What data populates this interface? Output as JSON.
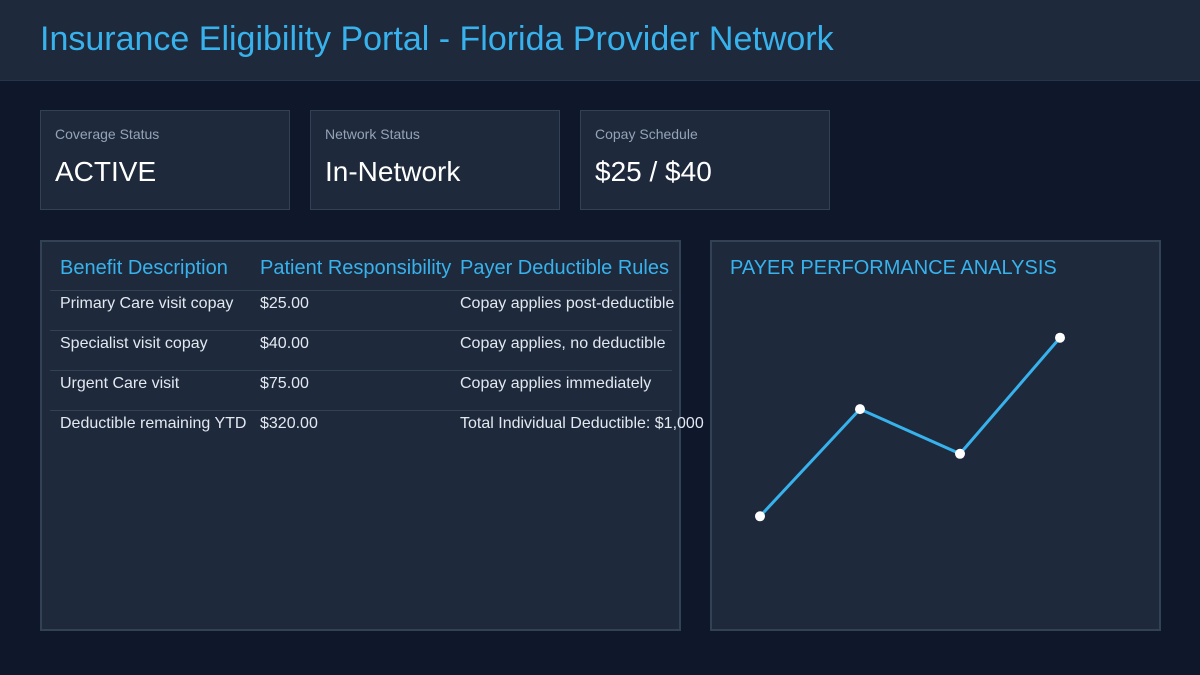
{
  "header": {
    "title": "Insurance Eligibility Portal - Florida Provider Network"
  },
  "cards": [
    {
      "label": "Coverage Status",
      "value": "ACTIVE"
    },
    {
      "label": "Network Status",
      "value": "In-Network"
    },
    {
      "label": "Copay Schedule",
      "value": "$25 / $40"
    }
  ],
  "table": {
    "headers": [
      "Benefit Description",
      "Patient Responsibility",
      "Payer Deductible Rules"
    ],
    "rows": [
      [
        "Primary Care visit copay",
        "$25.00",
        "Copay applies post-deductible"
      ],
      [
        "Specialist visit copay",
        "$40.00",
        "Copay applies, no deductible"
      ],
      [
        "Urgent Care visit",
        "$75.00",
        "Copay applies immediately"
      ],
      [
        "Deductible remaining YTD",
        "$320.00",
        "Total Individual Deductible: $1,000"
      ]
    ]
  },
  "chart": {
    "title": "PAYER PERFORMANCE ANALYSIS"
  },
  "chart_data": {
    "type": "line",
    "title": "PAYER PERFORMANCE ANALYSIS",
    "x": [
      1,
      2,
      3,
      4
    ],
    "series": [
      {
        "values": [
          20,
          80,
          55,
          120
        ]
      }
    ],
    "ylim": [
      0,
      140
    ],
    "grid": false,
    "legend": "none",
    "line_color": "#38b2ec",
    "marker_color": "#ffffff"
  },
  "colors": {
    "background": "#0f172a",
    "panel": "#1e293b",
    "accent": "#38b2ec",
    "border": "#334155"
  }
}
